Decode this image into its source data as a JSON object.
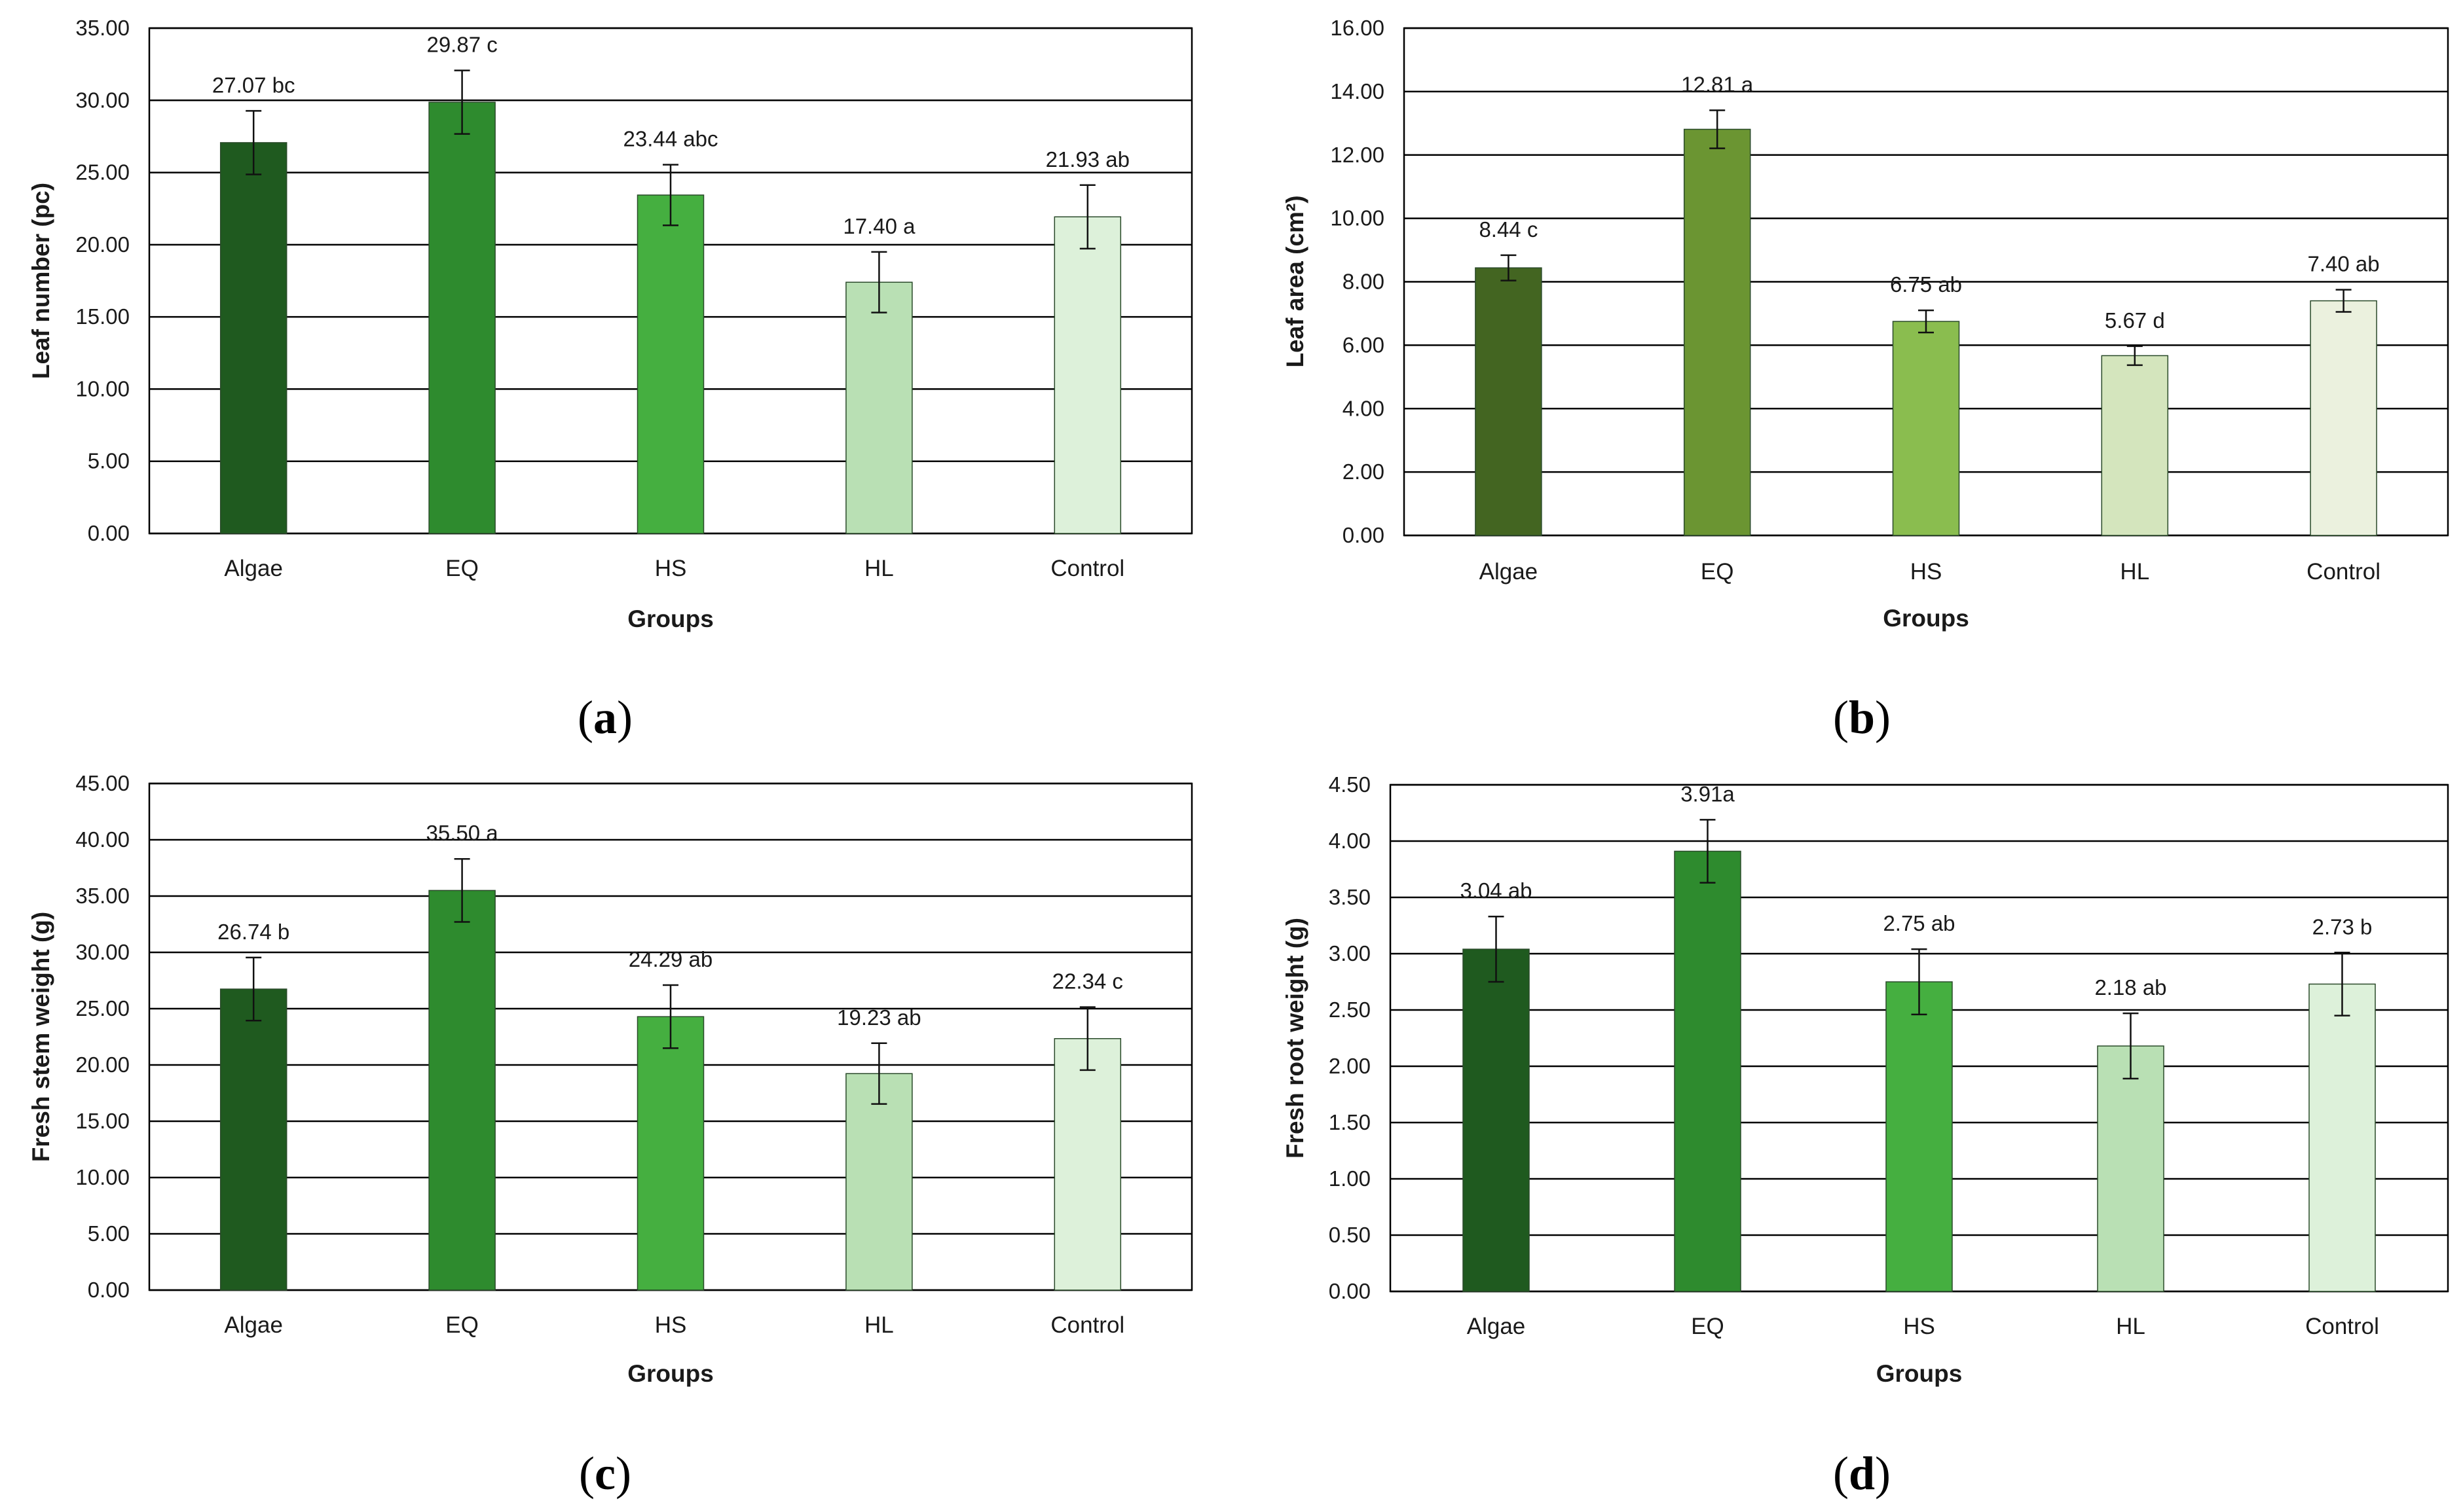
{
  "colors": [
    "#1f5a1f",
    "#2e8b2e",
    "#45af40",
    "#b9e0b4",
    "#ddf1da"
  ],
  "colors_b": [
    "#436521",
    "#6b9532",
    "#8abd4f",
    "#d4e5bd",
    "#ebf1de"
  ],
  "chart_data": [
    {
      "type": "bar",
      "panel": "(a)",
      "xlabel": "Groups",
      "ylabel": "Leaf number (pc)",
      "ylim": [
        0,
        35
      ],
      "yticks": [
        "0.00",
        "5.00",
        "10.00",
        "15.00",
        "20.00",
        "25.00",
        "30.00",
        "35.00"
      ],
      "categories": [
        "Algae",
        "EQ",
        "HS",
        "HL",
        "Control"
      ],
      "values": [
        27.07,
        29.87,
        23.44,
        17.4,
        21.93
      ],
      "errors": [
        2.2,
        2.2,
        2.1,
        2.1,
        2.2
      ],
      "labels": [
        "27.07 bc",
        "29.87 c",
        "23.44 abc",
        "17.40 a",
        "21.93 ab"
      ],
      "palette": "colors"
    },
    {
      "type": "bar",
      "panel": "(b)",
      "xlabel": "Groups",
      "ylabel": "Leaf area (cm²)",
      "ylim": [
        0,
        16
      ],
      "yticks": [
        "0.00",
        "2.00",
        "4.00",
        "6.00",
        "8.00",
        "10.00",
        "12.00",
        "14.00",
        "16.00"
      ],
      "categories": [
        "Algae",
        "EQ",
        "HS",
        "HL",
        "Control"
      ],
      "values": [
        8.44,
        12.81,
        6.75,
        5.67,
        7.4
      ],
      "errors": [
        0.4,
        0.6,
        0.35,
        0.3,
        0.35
      ],
      "labels": [
        "8.44 c",
        "12.81 a",
        "6.75 ab",
        "5.67 d",
        "7.40 ab"
      ],
      "palette": "colors_b"
    },
    {
      "type": "bar",
      "panel": "(c)",
      "xlabel": "Groups",
      "ylabel": "Fresh stem weight (g)",
      "ylim": [
        0,
        45
      ],
      "yticks": [
        "0.00",
        "5.00",
        "10.00",
        "15.00",
        "20.00",
        "25.00",
        "30.00",
        "35.00",
        "40.00",
        "45.00"
      ],
      "categories": [
        "Algae",
        "EQ",
        "HS",
        "HL",
        "Control"
      ],
      "values": [
        26.74,
        35.5,
        24.29,
        19.23,
        22.34
      ],
      "errors": [
        2.8,
        2.8,
        2.8,
        2.7,
        2.8
      ],
      "labels": [
        "26.74 b",
        "35.50 a",
        "24.29 ab",
        "19.23 ab",
        "22.34 c"
      ],
      "palette": "colors"
    },
    {
      "type": "bar",
      "panel": "(d)",
      "xlabel": "Groups",
      "ylabel": "Fresh root weight (g)",
      "ylim": [
        0,
        4.5
      ],
      "yticks": [
        "0.00",
        "0.50",
        "1.00",
        "1.50",
        "2.00",
        "2.50",
        "3.00",
        "3.50",
        "4.00",
        "4.50"
      ],
      "categories": [
        "Algae",
        "EQ",
        "HS",
        "HL",
        "Control"
      ],
      "values": [
        3.04,
        3.91,
        2.75,
        2.18,
        2.73
      ],
      "errors": [
        0.29,
        0.28,
        0.29,
        0.29,
        0.28
      ],
      "labels": [
        "3.04 ab",
        "3.91a",
        "2.75 ab",
        "2.18 ab",
        "2.73 b"
      ],
      "palette": "colors"
    }
  ]
}
